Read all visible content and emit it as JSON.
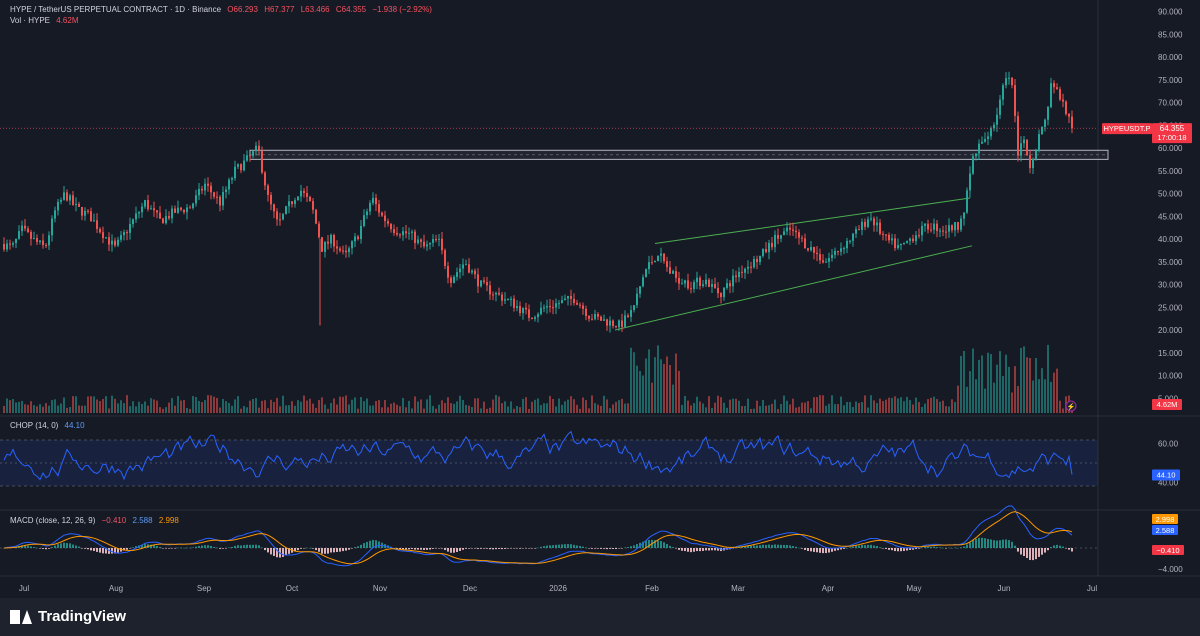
{
  "header": {
    "symbol_line": "HYPE / TetherUS PERPETUAL CONTRACT · 1D · Binance",
    "open": "O66.293",
    "high": "H67.377",
    "low": "L63.466",
    "close": "C64.355",
    "change": "−1.938 (−2.92%)",
    "vol_label": "Vol · HYPE",
    "vol_value": "4.62M"
  },
  "price_axis": {
    "ticks": [
      "90.000",
      "85.000",
      "80.000",
      "75.000",
      "70.000",
      "65.000",
      "60.000",
      "55.000",
      "50.000",
      "45.000",
      "40.000",
      "35.000",
      "30.000",
      "25.000",
      "20.000",
      "15.000",
      "10.000",
      "5.000"
    ],
    "symbol_tag": "HYPEUSDT.P",
    "last_price": "64.355",
    "countdown": "17:00:18",
    "vol_tag": "4.62M"
  },
  "chop": {
    "label": "CHOP (14, 0)",
    "value": "44.10",
    "axis_ticks": [
      "60.00",
      "40.00"
    ],
    "tag": "44.10"
  },
  "macd": {
    "label": "MACD (close, 12, 26, 9)",
    "hist": "−0.410",
    "macd": "2.588",
    "signal": "2.998",
    "axis_ticks": [
      "−4.000"
    ],
    "tag_signal": "2.998",
    "tag_macd": "2.588",
    "tag_hist": "−0.410"
  },
  "time_axis": [
    "Jul",
    "Aug",
    "Sep",
    "Oct",
    "Nov",
    "Dec",
    "2026",
    "Feb",
    "Mar",
    "Apr",
    "May",
    "Jun",
    "Jul"
  ],
  "footer": {
    "brand": "TradingView"
  },
  "colors": {
    "up": "#26a69a",
    "down": "#ef5350",
    "bg": "#161a25",
    "macd": "#2962ff",
    "signal": "#ff9800",
    "chop": "#2962ff",
    "channel": "#4caf50"
  },
  "chart_data": {
    "type": "candlestick",
    "title": "HYPE / TetherUS PERPETUAL CONTRACT · 1D · Binance",
    "x_range": [
      "Jul",
      "Jul"
    ],
    "ylim": [
      0,
      92
    ],
    "anchors": [
      [
        2,
        39
      ],
      [
        12,
        38
      ],
      [
        22,
        42
      ],
      [
        32,
        40
      ],
      [
        45,
        38
      ],
      [
        55,
        46
      ],
      [
        65,
        50
      ],
      [
        75,
        47
      ],
      [
        90,
        45
      ],
      [
        100,
        42
      ],
      [
        115,
        38
      ],
      [
        130,
        43
      ],
      [
        145,
        48
      ],
      [
        160,
        44
      ],
      [
        175,
        46
      ],
      [
        190,
        47
      ],
      [
        205,
        52
      ],
      [
        220,
        48
      ],
      [
        235,
        55
      ],
      [
        250,
        58
      ],
      [
        258,
        60
      ],
      [
        268,
        49
      ],
      [
        278,
        43
      ],
      [
        288,
        47
      ],
      [
        300,
        51
      ],
      [
        312,
        47
      ],
      [
        322,
        38
      ],
      [
        332,
        40
      ],
      [
        345,
        36
      ],
      [
        358,
        41
      ],
      [
        372,
        49
      ],
      [
        382,
        45
      ],
      [
        395,
        42
      ],
      [
        410,
        41
      ],
      [
        425,
        38
      ],
      [
        438,
        40
      ],
      [
        450,
        31
      ],
      [
        465,
        35
      ],
      [
        480,
        30
      ],
      [
        495,
        28
      ],
      [
        512,
        26
      ],
      [
        530,
        23
      ],
      [
        545,
        25
      ],
      [
        560,
        26
      ],
      [
        575,
        27
      ],
      [
        590,
        23
      ],
      [
        605,
        22
      ],
      [
        620,
        21
      ],
      [
        632,
        24
      ],
      [
        645,
        33
      ],
      [
        658,
        37
      ],
      [
        672,
        32
      ],
      [
        690,
        30
      ],
      [
        705,
        31
      ],
      [
        720,
        28
      ],
      [
        740,
        33
      ],
      [
        760,
        36
      ],
      [
        775,
        40
      ],
      [
        790,
        42
      ],
      [
        810,
        38
      ],
      [
        825,
        35
      ],
      [
        840,
        38
      ],
      [
        855,
        41
      ],
      [
        870,
        45
      ],
      [
        885,
        40
      ],
      [
        900,
        38
      ],
      [
        915,
        41
      ],
      [
        930,
        43
      ],
      [
        945,
        42
      ],
      [
        958,
        43
      ],
      [
        965,
        47
      ],
      [
        973,
        58
      ],
      [
        985,
        62
      ],
      [
        995,
        66
      ],
      [
        1005,
        75
      ],
      [
        1012,
        74
      ],
      [
        1018,
        58
      ],
      [
        1024,
        62
      ],
      [
        1030,
        56
      ],
      [
        1038,
        62
      ],
      [
        1045,
        66
      ],
      [
        1052,
        75
      ],
      [
        1058,
        72
      ],
      [
        1065,
        69
      ],
      [
        1072,
        64.355
      ]
    ],
    "resistance_zone": [
      57.5,
      59.5
    ],
    "channel": {
      "upper": [
        [
          655,
          39
        ],
        [
          970,
          49
        ]
      ],
      "lower": [
        [
          615,
          20
        ],
        [
          972,
          38.5
        ]
      ]
    },
    "last_price": 64.355,
    "volume_last": "4.62M",
    "chop": {
      "length": 14,
      "offset": 0,
      "last": 44.1,
      "upper_band": 61.8,
      "lower_band": 38.2
    },
    "macd": {
      "fast": 12,
      "slow": 26,
      "signal": 9,
      "macd_last": 2.588,
      "signal_last": 2.998,
      "hist_last": -0.41
    }
  }
}
